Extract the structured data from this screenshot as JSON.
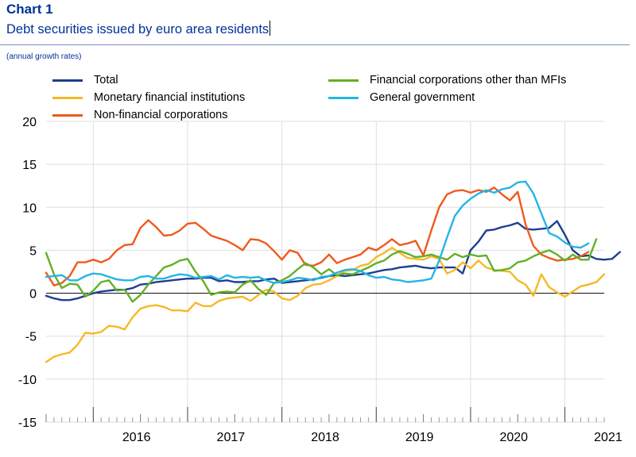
{
  "header": {
    "chart_number": "Chart 1",
    "title": "Debt securities issued by euro area residents",
    "subtitle": "(annual growth rates)"
  },
  "colors": {
    "title": "#003299",
    "total": "#1f3f8f",
    "monetary": "#f5b925",
    "nonfin": "#ef5a1c",
    "financial_other": "#62b024",
    "government": "#26b4e6"
  },
  "chart_data": {
    "type": "line",
    "xlabel": "",
    "ylabel": "",
    "ylim": [
      -15,
      20
    ],
    "yticks": [
      20,
      15,
      10,
      5,
      0,
      -5,
      -10,
      -15
    ],
    "year_labels": [
      "2016",
      "2017",
      "2018",
      "2019",
      "2020",
      "2021"
    ],
    "x_start": "2015-07",
    "x_end": "2021-06",
    "grid": true,
    "legend_position": "top",
    "series": [
      {
        "name": "Total",
        "key": "total",
        "values": [
          -0.3,
          -0.6,
          -0.8,
          -0.8,
          -0.6,
          -0.3,
          0,
          0.2,
          0.3,
          0.4,
          0.4,
          0.6,
          1.0,
          1.1,
          1.3,
          1.4,
          1.5,
          1.6,
          1.7,
          1.7,
          1.8,
          1.8,
          1.4,
          1.5,
          1.3,
          1.3,
          1.4,
          1.4,
          1.6,
          1.7,
          1.2,
          1.3,
          1.4,
          1.5,
          1.6,
          1.8,
          2.0,
          2.1,
          2.0,
          2.1,
          2.2,
          2.3,
          2.5,
          2.7,
          2.8,
          3.0,
          3.1,
          3.2,
          3.0,
          2.9,
          3.0,
          3.0,
          3.0,
          2.3,
          5.0,
          6.0,
          7.3,
          7.4,
          7.7,
          7.9,
          8.2,
          7.5,
          7.4,
          7.5,
          7.6,
          8.4,
          6.8,
          5.0,
          4.3,
          4.4,
          4.0,
          3.9,
          4.0,
          4.8
        ]
      },
      {
        "name": "Monetary financial institutions",
        "key": "monetary",
        "values": [
          -8.0,
          -7.4,
          -7.1,
          -6.9,
          -6.0,
          -4.6,
          -4.7,
          -4.5,
          -3.8,
          -3.9,
          -4.2,
          -2.8,
          -1.8,
          -1.5,
          -1.4,
          -1.6,
          -2.0,
          -2.0,
          -2.1,
          -1.1,
          -1.5,
          -1.5,
          -0.9,
          -0.6,
          -0.5,
          -0.4,
          -0.9,
          -0.2,
          0.4,
          0.2,
          -0.6,
          -0.8,
          -0.3,
          0.6,
          1.0,
          1.1,
          1.5,
          2.0,
          2.6,
          2.7,
          3.2,
          3.4,
          4.2,
          4.7,
          5.3,
          4.7,
          4.1,
          4.0,
          3.9,
          4.3,
          4.0,
          2.3,
          2.7,
          3.6,
          2.9,
          3.8,
          3.0,
          2.7,
          2.6,
          2.5,
          1.5,
          1.0,
          -0.3,
          2.2,
          0.7,
          0.1,
          -0.4,
          0.2,
          0.8,
          1.0,
          1.3,
          2.2
        ]
      },
      {
        "name": "Non-financial corporations",
        "key": "nonfin",
        "values": [
          2.4,
          0.9,
          1.2,
          2.0,
          3.6,
          3.6,
          3.9,
          3.6,
          4.0,
          5.0,
          5.6,
          5.7,
          7.6,
          8.5,
          7.7,
          6.7,
          6.8,
          7.3,
          8.1,
          8.2,
          7.5,
          6.7,
          6.4,
          6.1,
          5.6,
          5.0,
          6.3,
          6.2,
          5.8,
          4.9,
          3.9,
          5.0,
          4.7,
          3.3,
          3.2,
          3.6,
          4.5,
          3.5,
          3.9,
          4.2,
          4.5,
          5.3,
          5.0,
          5.6,
          6.3,
          5.6,
          5.8,
          6.1,
          4.4,
          7.3,
          10.0,
          11.5,
          11.9,
          12.0,
          11.7,
          12.0,
          11.8,
          12.3,
          11.5,
          10.8,
          11.8,
          8.0,
          5.5,
          4.5,
          4.1,
          3.8,
          3.9,
          4.0,
          4.3,
          4.8
        ]
      },
      {
        "name": "Financial corporations other than MFIs",
        "key": "financial_other",
        "values": [
          4.7,
          2.2,
          0.6,
          1.1,
          1.0,
          -0.4,
          0.3,
          1.3,
          1.5,
          0.3,
          0.4,
          -1.0,
          -0.2,
          1.0,
          2.0,
          3.0,
          3.3,
          3.8,
          4.0,
          2.5,
          1.4,
          -0.2,
          0.1,
          0.2,
          0.1,
          1.0,
          1.5,
          0.5,
          -0.2,
          1.2,
          1.5,
          2.0,
          2.8,
          3.5,
          3.0,
          2.2,
          2.8,
          2.1,
          2.3,
          2.2,
          2.6,
          3.0,
          3.5,
          3.8,
          4.5,
          4.9,
          4.6,
          4.2,
          4.3,
          4.5,
          4.2,
          3.9,
          4.6,
          4.2,
          4.5,
          4.3,
          4.4,
          2.6,
          2.7,
          2.9,
          3.6,
          3.8,
          4.3,
          4.7,
          5.0,
          4.5,
          3.8,
          4.5,
          3.9,
          3.9,
          6.3
        ]
      },
      {
        "name": "General government",
        "key": "government",
        "values": [
          1.9,
          2.0,
          2.1,
          1.5,
          1.5,
          2.0,
          2.3,
          2.2,
          1.9,
          1.6,
          1.5,
          1.5,
          1.9,
          2.0,
          1.7,
          1.7,
          2.0,
          2.2,
          2.1,
          1.8,
          1.9,
          2.0,
          1.6,
          2.1,
          1.8,
          1.9,
          1.8,
          1.9,
          1.5,
          1.2,
          1.3,
          1.5,
          1.8,
          1.7,
          1.5,
          1.9,
          2.0,
          2.4,
          2.7,
          2.8,
          2.6,
          2.1,
          1.8,
          1.9,
          1.6,
          1.5,
          1.3,
          1.4,
          1.5,
          1.7,
          3.8,
          6.5,
          9.0,
          10.2,
          11.0,
          11.6,
          12.0,
          11.7,
          12.1,
          12.3,
          12.9,
          13.0,
          11.6,
          9.3,
          7.0,
          6.6,
          5.9,
          5.4,
          5.3,
          5.8
        ]
      }
    ]
  }
}
